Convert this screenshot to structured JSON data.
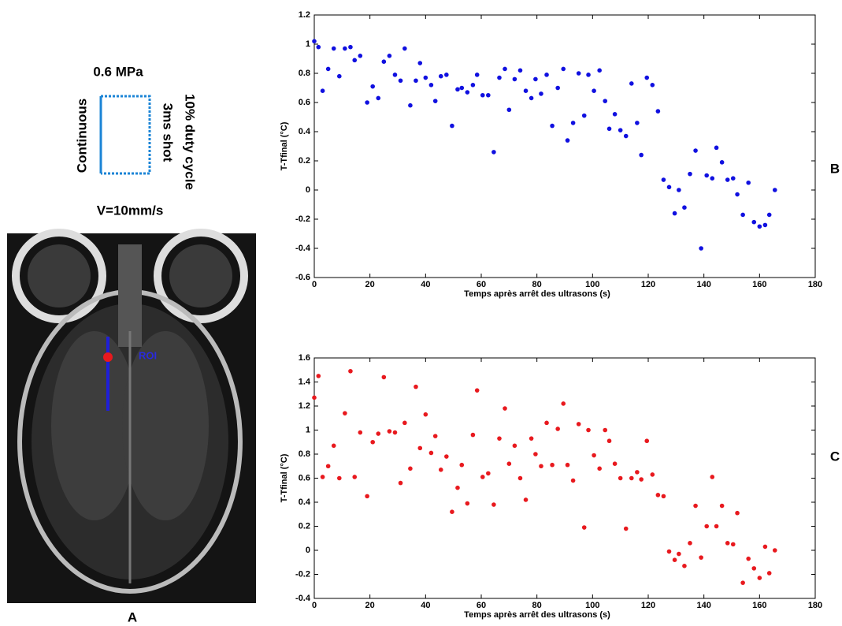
{
  "diagram": {
    "pressure": "0.6 MPa",
    "mode": "Continuous",
    "shot": "3ms shot",
    "duty": "10% duty cycle",
    "speed": "V=10mm/s"
  },
  "image": {
    "roi_label": "ROI",
    "panel": "A"
  },
  "chart_data": [
    {
      "type": "scatter",
      "panel": "B",
      "x_label": "Temps après arrêt des ultrasons (s)",
      "y_label": "T-Tfinal (°C)",
      "color": "#1010e0",
      "xlim": [
        0,
        180
      ],
      "xticks": [
        0,
        20,
        40,
        60,
        80,
        100,
        120,
        140,
        160,
        180
      ],
      "ylim": [
        -0.6,
        1.2
      ],
      "yticks": [
        -0.6,
        -0.4,
        -0.2,
        0,
        0.2,
        0.4,
        0.6,
        0.8,
        1,
        1.2
      ],
      "x": [
        0,
        1.5,
        3,
        5,
        7,
        9,
        11,
        13,
        14.5,
        16.5,
        19,
        21,
        23,
        25,
        27,
        29,
        31,
        32.5,
        34.5,
        36.5,
        38,
        40,
        42,
        43.5,
        45.5,
        47.5,
        49.5,
        51.5,
        53,
        55,
        57,
        58.5,
        60.5,
        62.5,
        64.5,
        66.5,
        68.5,
        70,
        72,
        74,
        76,
        78,
        79.5,
        81.5,
        83.5,
        85.5,
        87.5,
        89.5,
        91,
        93,
        95,
        97,
        98.5,
        100.5,
        102.5,
        104.5,
        106,
        108,
        110,
        112,
        114,
        116,
        117.5,
        119.5,
        121.5,
        123.5,
        125.5,
        127.5,
        129.5,
        131,
        133,
        135,
        137,
        139,
        141,
        143,
        144.5,
        146.5,
        148.5,
        150.5,
        152,
        154,
        156,
        158,
        160,
        162,
        163.5,
        165.5
      ],
      "values": [
        1.02,
        0.98,
        0.68,
        0.83,
        0.97,
        0.78,
        0.97,
        0.98,
        0.89,
        0.92,
        0.6,
        0.71,
        0.63,
        0.88,
        0.92,
        0.79,
        0.75,
        0.97,
        0.58,
        0.75,
        0.87,
        0.77,
        0.72,
        0.61,
        0.78,
        0.79,
        0.44,
        0.69,
        0.7,
        0.67,
        0.72,
        0.79,
        0.65,
        0.65,
        0.26,
        0.77,
        0.83,
        0.55,
        0.76,
        0.82,
        0.68,
        0.63,
        0.76,
        0.66,
        0.79,
        0.44,
        0.7,
        0.83,
        0.34,
        0.46,
        0.8,
        0.51,
        0.79,
        0.68,
        0.82,
        0.61,
        0.42,
        0.52,
        0.41,
        0.37,
        0.73,
        0.46,
        0.24,
        0.77,
        0.72,
        0.54,
        0.07,
        0.02,
        -0.16,
        0,
        -0.12,
        0.11,
        0.27,
        -0.4,
        0.1,
        0.08,
        0.29,
        0.19,
        0.07,
        0.08,
        -0.03,
        -0.17,
        0.05,
        -0.22,
        -0.25,
        -0.24,
        -0.17,
        0
      ]
    },
    {
      "type": "scatter",
      "panel": "C",
      "x_label": "Temps après arrêt des ultrasons (s)",
      "y_label": "T-Tfinal (°C)",
      "color": "#e8191e",
      "xlim": [
        0,
        180
      ],
      "xticks": [
        0,
        20,
        40,
        60,
        80,
        100,
        120,
        140,
        160,
        180
      ],
      "ylim": [
        -0.4,
        1.6
      ],
      "yticks": [
        -0.4,
        -0.2,
        0,
        0.2,
        0.4,
        0.6,
        0.8,
        1,
        1.2,
        1.4,
        1.6
      ],
      "x": [
        0,
        1.5,
        3,
        5,
        7,
        9,
        11,
        13,
        14.5,
        16.5,
        19,
        21,
        23,
        25,
        27,
        29,
        31,
        32.5,
        34.5,
        36.5,
        38,
        40,
        42,
        43.5,
        45.5,
        47.5,
        49.5,
        51.5,
        53,
        55,
        57,
        58.5,
        60.5,
        62.5,
        64.5,
        66.5,
        68.5,
        70,
        72,
        74,
        76,
        78,
        79.5,
        81.5,
        83.5,
        85.5,
        87.5,
        89.5,
        91,
        93,
        95,
        97,
        98.5,
        100.5,
        102.5,
        104.5,
        106,
        108,
        110,
        112,
        114,
        116,
        117.5,
        119.5,
        121.5,
        123.5,
        125.5,
        127.5,
        129.5,
        131,
        133,
        135,
        137,
        139,
        141,
        143,
        144.5,
        146.5,
        148.5,
        150.5,
        152,
        154,
        156,
        158,
        160,
        162,
        163.5,
        165.5
      ],
      "values": [
        1.27,
        1.45,
        0.61,
        0.7,
        0.87,
        0.6,
        1.14,
        1.49,
        0.61,
        0.98,
        0.45,
        0.9,
        0.97,
        1.44,
        0.99,
        0.98,
        0.56,
        1.06,
        0.68,
        1.36,
        0.85,
        1.13,
        0.81,
        0.95,
        0.67,
        0.78,
        0.32,
        0.52,
        0.71,
        0.39,
        0.96,
        1.33,
        0.61,
        0.64,
        0.38,
        0.93,
        1.18,
        0.72,
        0.87,
        0.6,
        0.42,
        0.93,
        0.8,
        0.7,
        1.06,
        0.71,
        1.01,
        1.22,
        0.71,
        0.58,
        1.05,
        0.19,
        1.0,
        0.79,
        0.68,
        1.0,
        0.91,
        0.72,
        0.6,
        0.18,
        0.6,
        0.65,
        0.59,
        0.91,
        0.63,
        0.46,
        0.45,
        -0.01,
        -0.08,
        -0.03,
        -0.13,
        0.06,
        0.37,
        -0.06,
        0.2,
        0.61,
        0.2,
        0.37,
        0.06,
        0.05,
        0.31,
        -0.27,
        -0.07,
        -0.15,
        -0.23,
        0.03,
        -0.19,
        0
      ]
    }
  ]
}
